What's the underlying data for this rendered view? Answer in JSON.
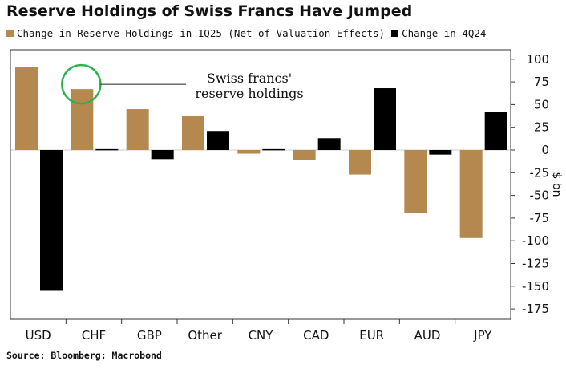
{
  "chart_data": {
    "type": "bar",
    "title": "Reserve Holdings of Swiss Francs Have Jumped",
    "categories": [
      "USD",
      "CHF",
      "GBP",
      "Other",
      "CNY",
      "CAD",
      "EUR",
      "AUD",
      "JPY"
    ],
    "series": [
      {
        "name": "Change in Reserve Holdings in 1Q25 (Net of Valuation Effects)",
        "color": "#b5884f",
        "values": [
          91,
          67,
          45,
          38,
          -4,
          -11,
          -27,
          -69,
          -97
        ]
      },
      {
        "name": "Change in 4Q24",
        "color": "#000000",
        "values": [
          -155,
          1,
          -10,
          21,
          1,
          13,
          68,
          -5,
          42
        ]
      }
    ],
    "ylabel": "$ bn",
    "ylim": [
      -180,
      105
    ],
    "yticks": [
      100,
      75,
      50,
      25,
      0,
      -25,
      -50,
      -75,
      -100,
      -125,
      -150,
      -175
    ],
    "annotation": {
      "line1": "Swiss francs'",
      "line2": "reserve holdings",
      "target_category": "CHF",
      "circle_color": "#2bb24c"
    },
    "source": "Source: Bloomberg; Macrobond"
  }
}
